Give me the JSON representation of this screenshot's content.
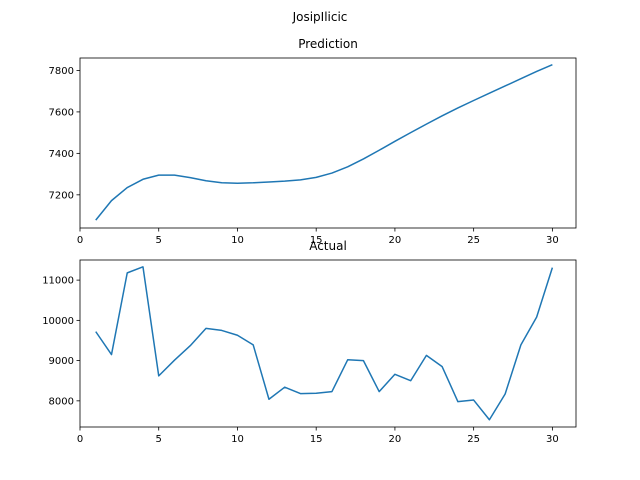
{
  "figure": {
    "suptitle": "JosipIlicic"
  },
  "chart_data": [
    {
      "type": "line",
      "title": "Prediction",
      "xlabel": "",
      "ylabel": "",
      "xlim": [
        0,
        31.5
      ],
      "ylim": [
        7040,
        7860
      ],
      "xticks": [
        0,
        5,
        10,
        15,
        20,
        25,
        30
      ],
      "yticks": [
        7200,
        7400,
        7600,
        7800
      ],
      "grid": false,
      "color": "#1f77b4",
      "series": [
        {
          "x": [
            1,
            2,
            3,
            4,
            5,
            6,
            7,
            8,
            9,
            10,
            11,
            12,
            13,
            14,
            15,
            16,
            17,
            18,
            19,
            20,
            21,
            22,
            23,
            24,
            25,
            26,
            27,
            28,
            29,
            30
          ],
          "values": [
            7078,
            7172,
            7235,
            7275,
            7295,
            7295,
            7283,
            7268,
            7258,
            7256,
            7258,
            7262,
            7266,
            7272,
            7284,
            7305,
            7335,
            7373,
            7415,
            7458,
            7500,
            7541,
            7581,
            7619,
            7655,
            7690,
            7725,
            7760,
            7795,
            7828
          ]
        }
      ]
    },
    {
      "type": "line",
      "title": "Actual",
      "xlabel": "",
      "ylabel": "",
      "xlim": [
        0,
        31.5
      ],
      "ylim": [
        7350,
        11500
      ],
      "xticks": [
        0,
        5,
        10,
        15,
        20,
        25,
        30
      ],
      "yticks": [
        8000,
        9000,
        10000,
        11000
      ],
      "grid": false,
      "color": "#1f77b4",
      "series": [
        {
          "x": [
            1,
            2,
            3,
            4,
            5,
            6,
            7,
            8,
            9,
            10,
            11,
            12,
            13,
            14,
            15,
            16,
            17,
            18,
            19,
            20,
            21,
            22,
            23,
            24,
            25,
            26,
            27,
            28,
            29,
            30
          ],
          "values": [
            9720,
            9150,
            11180,
            11330,
            8620,
            9010,
            9370,
            9800,
            9750,
            9630,
            9390,
            8040,
            8340,
            8180,
            8190,
            8230,
            9020,
            9000,
            8230,
            8660,
            8500,
            9130,
            8850,
            7980,
            8020,
            7530,
            8170,
            9390,
            10080,
            11310
          ]
        }
      ]
    }
  ]
}
